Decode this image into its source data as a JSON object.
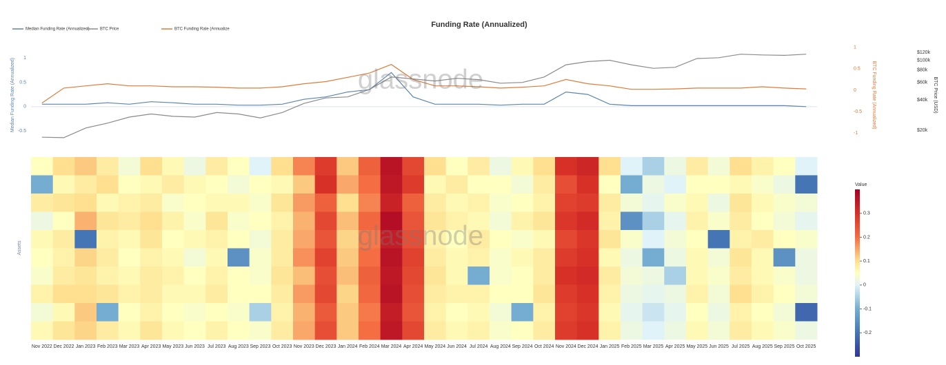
{
  "chart_data": [
    {
      "type": "line",
      "title": "Funding Rate (Annualized)",
      "watermark": "glassnode",
      "legend": "top-left",
      "x": [
        "Nov 2022",
        "Dec 2022",
        "Jan 2023",
        "Feb 2023",
        "Mar 2023",
        "Apr 2023",
        "May 2023",
        "Jun 2023",
        "Jul 2023",
        "Aug 2023",
        "Sep 2023",
        "Oct 2023",
        "Nov 2023",
        "Dec 2023",
        "Jan 2024",
        "Feb 2024",
        "Mar 2024",
        "Apr 2024",
        "May 2024",
        "Jun 2024",
        "Jul 2024",
        "Aug 2024",
        "Sep 2024",
        "Oct 2024",
        "Nov 2024",
        "Dec 2024",
        "Jan 2025",
        "Feb 2025",
        "Mar 2025",
        "Apr 2025",
        "May 2025",
        "Jun 2025",
        "Jul 2025",
        "Aug 2025",
        "Sep 2025",
        "Oct 2025"
      ],
      "series": [
        {
          "name": "Median Funding Rate (Annualized)",
          "color": "#5b84b1",
          "axis": "y",
          "values": [
            0.05,
            0.05,
            0.05,
            0.08,
            0.05,
            0.1,
            0.08,
            0.05,
            0.05,
            0.03,
            0.03,
            0.05,
            0.15,
            0.2,
            0.3,
            0.35,
            0.7,
            0.2,
            0.05,
            0.05,
            0.05,
            0.03,
            0.05,
            0.05,
            0.3,
            0.25,
            0.05,
            0.02,
            0.02,
            0.02,
            0.02,
            0.02,
            0.02,
            0.02,
            0.02,
            0.0
          ]
        },
        {
          "name": "BTC Price",
          "color": "#8a8a8a",
          "axis": "y3",
          "values": [
            17000,
            16800,
            21000,
            23500,
            27000,
            29000,
            27500,
            27000,
            30000,
            29000,
            26500,
            30000,
            37000,
            42000,
            43000,
            51000,
            68000,
            65000,
            62000,
            66000,
            64000,
            59000,
            60000,
            68000,
            90000,
            97000,
            100000,
            90000,
            83000,
            85000,
            104000,
            106000,
            115000,
            113000,
            112000,
            115000
          ]
        },
        {
          "name": "BTC Funding Rate (Annualize",
          "color": "#e07b39",
          "axis": "y2",
          "values": [
            -0.3,
            0.05,
            0.1,
            0.15,
            0.1,
            0.1,
            0.08,
            0.08,
            0.07,
            0.05,
            0.05,
            0.08,
            0.15,
            0.2,
            0.3,
            0.4,
            0.6,
            0.25,
            0.1,
            0.1,
            0.08,
            0.05,
            0.07,
            0.1,
            0.25,
            0.15,
            0.1,
            0.02,
            0.02,
            0.03,
            0.05,
            0.05,
            0.05,
            0.08,
            0.05,
            0.03
          ]
        }
      ],
      "ylabel": "Median Funding Rate (Annualized)",
      "ylim": [
        -0.71,
        1.2
      ],
      "yticks": [
        -0.5,
        0,
        0.5,
        1
      ],
      "y2label": "BTC Funding Rate (Annualized)",
      "y2lim": [
        -1.19,
        0.98
      ],
      "y2ticks": [
        -1,
        -0.5,
        0,
        0.5,
        1
      ],
      "y3label": "BTC Price (USD)",
      "y3log": true,
      "y3lim": [
        15500,
        132000
      ],
      "y3ticks": [
        {
          "value": 20000,
          "label": "$20k"
        },
        {
          "value": 40000,
          "label": "$40k"
        },
        {
          "value": 60000,
          "label": "$60k"
        },
        {
          "value": 80000,
          "label": "$80k"
        },
        {
          "value": 100000,
          "label": "$100k"
        },
        {
          "value": 120000,
          "label": "$120k"
        }
      ]
    },
    {
      "type": "heatmap",
      "watermark": "glassnode",
      "ylabel": "Assets",
      "colorbar_title": "Value",
      "x": [
        "Nov 2022",
        "Dec 2022",
        "Jan 2023",
        "Feb 2023",
        "Mar 2023",
        "Apr 2023",
        "May 2023",
        "Jun 2023",
        "Jul 2023",
        "Aug 2023",
        "Sep 2023",
        "Oct 2023",
        "Nov 2023",
        "Dec 2023",
        "Jan 2024",
        "Feb 2024",
        "Mar 2024",
        "Apr 2024",
        "May 2024",
        "Jun 2024",
        "Jul 2024",
        "Aug 2024",
        "Sep 2024",
        "Oct 2024",
        "Nov 2024",
        "Dec 2024",
        "Jan 2025",
        "Feb 2025",
        "Mar 2025",
        "Apr 2025",
        "May 2025",
        "Jun 2025",
        "Jul 2025",
        "Aug 2025",
        "Sep 2025",
        "Oct 2025"
      ],
      "clim": [
        -0.3,
        0.4
      ],
      "cticks": [
        -0.2,
        -0.1,
        0,
        0.1,
        0.2,
        0.3
      ],
      "colorscale": [
        [
          -0.3,
          "#313695"
        ],
        [
          -0.2,
          "#4575b4"
        ],
        [
          -0.1,
          "#74add1"
        ],
        [
          0,
          "#e0f3f8"
        ],
        [
          0.05,
          "#ffffbf"
        ],
        [
          0.1,
          "#fee090"
        ],
        [
          0.2,
          "#f46d43"
        ],
        [
          0.3,
          "#d73027"
        ],
        [
          0.4,
          "#a50026"
        ]
      ],
      "values": [
        [
          0.05,
          0.1,
          0.12,
          0.08,
          0.03,
          0.1,
          0.06,
          0.02,
          0.08,
          0.05,
          0.0,
          0.1,
          0.18,
          0.28,
          0.12,
          0.22,
          0.36,
          0.26,
          0.1,
          0.05,
          0.08,
          0.02,
          0.06,
          0.1,
          0.3,
          0.32,
          0.1,
          0.0,
          -0.05,
          0.02,
          0.08,
          0.03,
          0.1,
          0.07,
          0.05,
          0.0
        ],
        [
          -0.1,
          0.06,
          0.08,
          0.1,
          0.05,
          0.06,
          0.08,
          0.06,
          0.05,
          0.03,
          0.05,
          0.06,
          0.12,
          0.3,
          0.15,
          0.2,
          0.35,
          0.28,
          0.06,
          0.08,
          0.05,
          0.05,
          0.03,
          0.08,
          0.25,
          0.3,
          0.05,
          -0.1,
          0.02,
          0.0,
          0.05,
          0.05,
          0.06,
          0.04,
          0.02,
          -0.2
        ],
        [
          0.08,
          0.09,
          0.1,
          0.06,
          0.07,
          0.08,
          0.04,
          0.05,
          0.06,
          0.06,
          0.04,
          0.09,
          0.16,
          0.22,
          0.1,
          0.18,
          0.33,
          0.22,
          0.08,
          0.06,
          0.07,
          0.04,
          0.05,
          0.07,
          0.27,
          0.28,
          0.08,
          0.03,
          0.01,
          0.04,
          0.06,
          0.02,
          0.09,
          0.06,
          0.04,
          0.03
        ],
        [
          0.02,
          0.05,
          0.14,
          0.09,
          0.08,
          0.1,
          0.07,
          0.04,
          0.09,
          0.04,
          0.05,
          0.07,
          0.14,
          0.26,
          0.13,
          0.21,
          0.37,
          0.24,
          0.09,
          0.07,
          0.06,
          0.03,
          0.07,
          0.09,
          0.29,
          0.31,
          0.07,
          -0.15,
          -0.05,
          0.01,
          0.07,
          0.04,
          0.08,
          0.05,
          0.03,
          0.01
        ],
        [
          0.06,
          0.08,
          -0.2,
          0.07,
          0.06,
          0.09,
          0.05,
          0.06,
          0.07,
          0.05,
          0.03,
          0.08,
          0.15,
          0.24,
          0.11,
          0.19,
          0.34,
          0.25,
          0.07,
          0.05,
          0.08,
          0.05,
          0.04,
          0.06,
          0.26,
          0.29,
          0.09,
          0.04,
          0.0,
          0.03,
          0.05,
          -0.2,
          0.07,
          0.08,
          0.05,
          0.04
        ],
        [
          0.05,
          0.07,
          0.11,
          0.08,
          0.05,
          0.07,
          0.06,
          0.03,
          0.06,
          -0.15,
          0.04,
          0.08,
          0.17,
          0.27,
          0.12,
          0.2,
          0.36,
          0.27,
          0.08,
          0.06,
          0.07,
          0.04,
          0.06,
          0.08,
          0.28,
          0.3,
          0.06,
          0.02,
          -0.1,
          0.02,
          0.06,
          0.03,
          0.09,
          0.06,
          -0.15,
          0.02
        ],
        [
          0.04,
          0.08,
          0.09,
          0.07,
          0.06,
          0.08,
          0.07,
          0.05,
          0.07,
          0.05,
          0.04,
          0.09,
          0.13,
          0.25,
          0.13,
          0.22,
          0.35,
          0.26,
          0.09,
          0.06,
          -0.1,
          0.04,
          0.05,
          0.08,
          0.3,
          0.31,
          0.08,
          0.03,
          0.02,
          -0.05,
          0.06,
          0.04,
          0.08,
          0.06,
          0.04,
          0.02
        ],
        [
          0.07,
          0.1,
          0.1,
          0.09,
          0.07,
          0.08,
          0.06,
          0.06,
          0.08,
          0.05,
          0.05,
          0.08,
          0.16,
          0.26,
          0.11,
          0.21,
          0.36,
          0.25,
          0.08,
          0.07,
          0.07,
          0.05,
          0.05,
          0.09,
          0.28,
          0.3,
          0.07,
          0.02,
          0.01,
          0.02,
          0.07,
          0.03,
          0.1,
          0.07,
          0.05,
          0.03
        ],
        [
          0.03,
          0.06,
          0.12,
          -0.1,
          0.05,
          0.07,
          0.05,
          0.04,
          0.05,
          0.04,
          -0.05,
          0.07,
          0.14,
          0.23,
          0.12,
          0.19,
          0.34,
          0.24,
          0.07,
          0.05,
          0.06,
          0.03,
          -0.1,
          0.07,
          0.27,
          0.29,
          0.06,
          0.01,
          -0.02,
          0.01,
          0.05,
          0.02,
          0.07,
          0.05,
          0.03,
          -0.22
        ],
        [
          0.06,
          0.09,
          0.11,
          0.08,
          0.06,
          0.09,
          0.06,
          0.05,
          0.07,
          0.05,
          0.04,
          0.08,
          0.15,
          0.25,
          0.12,
          0.2,
          0.35,
          0.26,
          0.08,
          0.06,
          0.07,
          0.04,
          0.05,
          0.08,
          0.28,
          0.3,
          0.07,
          0.02,
          0.0,
          0.02,
          0.06,
          0.03,
          0.08,
          0.06,
          0.04,
          0.02
        ]
      ]
    }
  ]
}
